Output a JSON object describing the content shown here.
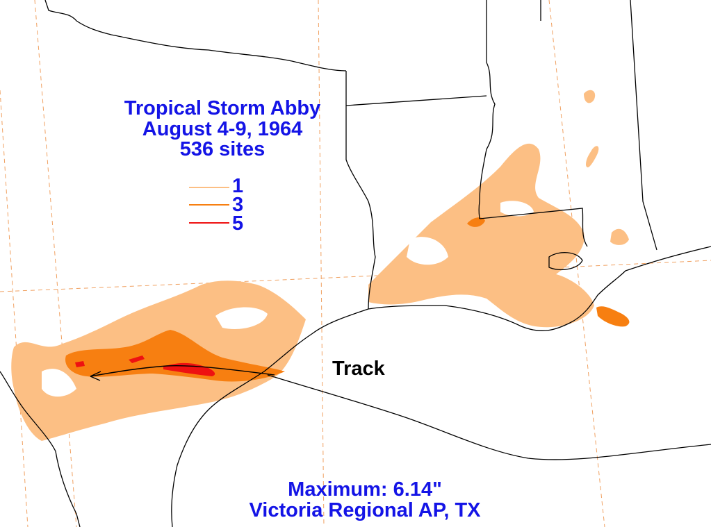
{
  "title": {
    "line1": "Tropical Storm Abby",
    "line2": "August 4-9, 1964",
    "line3": "536 sites"
  },
  "legend": [
    {
      "label": "1",
      "color": "#fcbf84"
    },
    {
      "label": "3",
      "color": "#f77f11"
    },
    {
      "label": "5",
      "color": "#ee1111"
    }
  ],
  "track_label": "Track",
  "footer": {
    "maximum": "Maximum:  6.14\"",
    "location": "Victoria Regional AP, TX"
  },
  "colors": {
    "text": "#1414e6",
    "boundary": "#000000",
    "graticule": "#f0a060",
    "contour_1": "#fcbf84",
    "contour_3": "#f77f11",
    "contour_5": "#ee1111"
  }
}
